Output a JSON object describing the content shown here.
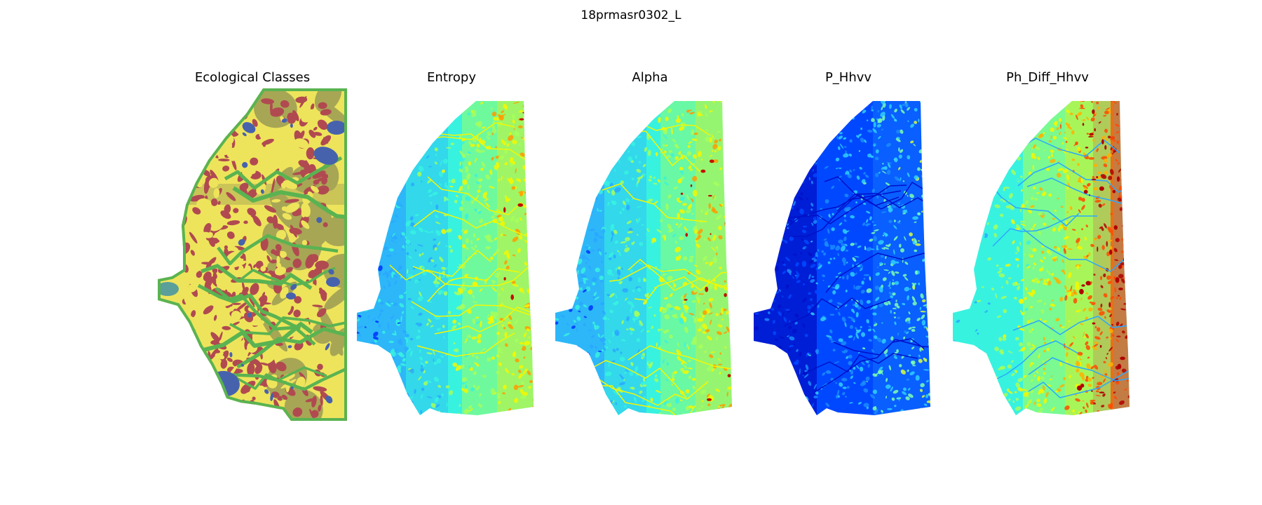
{
  "figure_title": "18prmasr0302_L",
  "panels": [
    {
      "title": "Ecological Classes",
      "colormap": "categorical",
      "colors": [
        "#eee45b",
        "#b04a50",
        "#a7a655",
        "#5ab351",
        "#4762ad",
        "#5b9f9a"
      ]
    },
    {
      "title": "Entropy",
      "colormap": "jet",
      "colors": [
        "#0031ff",
        "#2aa8ff",
        "#38f2e0",
        "#a6ff5a",
        "#f4f700",
        "#ff9a00",
        "#c01000"
      ]
    },
    {
      "title": "Alpha",
      "colormap": "jet",
      "colors": [
        "#0031ff",
        "#2aa8ff",
        "#38f2e0",
        "#a6ff5a",
        "#f4f700",
        "#ff9a00",
        "#c01000"
      ]
    },
    {
      "title": "P_Hhvv",
      "colormap": "jet",
      "colors": [
        "#0010c8",
        "#0048ff",
        "#1a8cff",
        "#2fd0ff",
        "#7cffb0",
        "#d8ff3a"
      ]
    },
    {
      "title": "Ph_Diff_Hhvv",
      "colormap": "jet",
      "colors": [
        "#2aa8ff",
        "#38f2e0",
        "#a6ff5a",
        "#f4f700",
        "#ffb000",
        "#ff4a00",
        "#b00000"
      ]
    }
  ]
}
